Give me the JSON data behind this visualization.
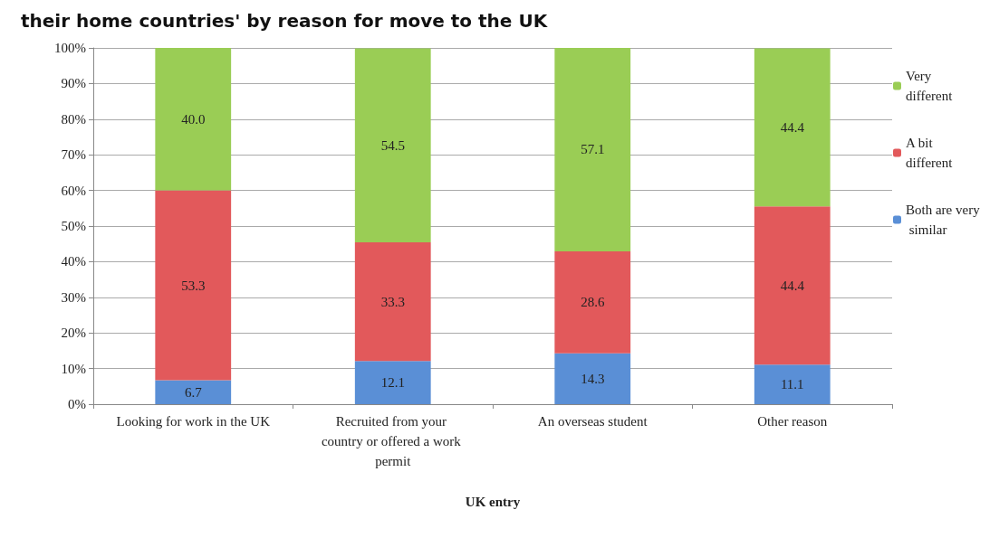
{
  "chart_data": {
    "type": "bar",
    "stacked": true,
    "title": "their home countries' by reason for move to the UK",
    "xlabel": "UK entry",
    "categories": [
      "Looking for work in the UK",
      "Recruited from your country or offered a work permit",
      "An overseas student",
      "Other reason"
    ],
    "series": [
      {
        "name": "Both are very similar",
        "color": "#5a8fd6",
        "values": [
          6.7,
          12.1,
          14.3,
          11.1
        ],
        "value_labels": [
          "6.7",
          "12.1",
          "14.3",
          "11.1"
        ]
      },
      {
        "name": "A bit different",
        "color": "#e2595b",
        "values": [
          53.3,
          33.3,
          28.6,
          44.4
        ],
        "value_labels": [
          "53.3",
          "33.3",
          "28.6",
          "44.4"
        ]
      },
      {
        "name": "Very different",
        "color": "#9acd55",
        "values": [
          40.0,
          54.5,
          57.1,
          44.4
        ],
        "value_labels": [
          "40.0",
          "54.5",
          "57.1",
          "44.4"
        ]
      }
    ],
    "ylim": [
      0,
      100
    ],
    "yticks": [
      {
        "value": 0,
        "label": "0%"
      },
      {
        "value": 10,
        "label": "10%"
      },
      {
        "value": 20,
        "label": "20%"
      },
      {
        "value": 30,
        "label": "30%"
      },
      {
        "value": 40,
        "label": "40%"
      },
      {
        "value": 50,
        "label": "50%"
      },
      {
        "value": 60,
        "label": "60%"
      },
      {
        "value": 70,
        "label": "70%"
      },
      {
        "value": 80,
        "label": "80%"
      },
      {
        "value": 90,
        "label": "90%"
      },
      {
        "value": 100,
        "label": "100%"
      }
    ],
    "grid": "y",
    "legend": "right"
  }
}
